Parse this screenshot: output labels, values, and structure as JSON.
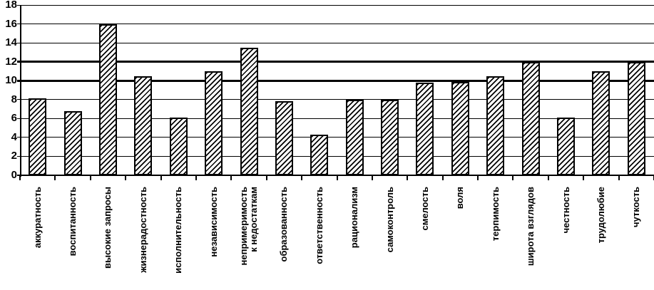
{
  "chart_data": {
    "type": "bar",
    "title": "",
    "categories": [
      "аккуратность",
      "воспитанность",
      "высокие запросы",
      "жизнерадостность",
      "исполнительность",
      "независимость",
      "непримеримость\nк недостаткам",
      "образованность",
      "ответственность",
      "рационализм",
      "самоконтроль",
      "смелость",
      "воля",
      "терпимость",
      "широта взглядов",
      "честность",
      "трудолюбие",
      "чуткость"
    ],
    "values": [
      8.1,
      6.8,
      16,
      10.5,
      6.1,
      11,
      13.5,
      7.8,
      4.3,
      8,
      8,
      9.8,
      9.9,
      10.5,
      12,
      6.1,
      11,
      12
    ],
    "xlabel": "",
    "ylabel": "",
    "ylim": [
      0,
      18
    ],
    "yticks": [
      0,
      2,
      4,
      6,
      8,
      10,
      12,
      14,
      16,
      18
    ],
    "emphasized_gridlines": [
      10,
      12
    ],
    "grid": true,
    "legend_position": "none",
    "bar_style": {
      "fill": "diagonal-hatch",
      "hatch_direction": "forward-slash",
      "hatch_color": "#000000",
      "bar_background": "#ffffff",
      "border_color": "#000000",
      "grid_color": "#000000",
      "text_color": "#000000",
      "page_background": "#ffffff"
    }
  }
}
